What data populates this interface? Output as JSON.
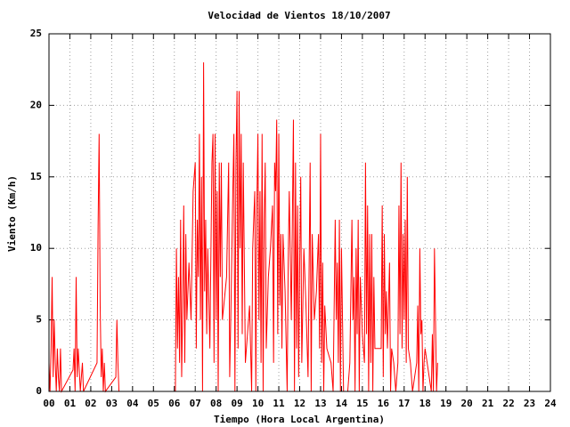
{
  "chart_data": {
    "type": "line",
    "title": "Velocidad de Vientos 18/10/2007",
    "xlabel": "Tiempo (Hora Local Argentina)",
    "ylabel": "Viento (Km/h)",
    "color": "#ff0000",
    "grid": true,
    "xlim": [
      0,
      24
    ],
    "ylim": [
      0,
      25
    ],
    "xticks": [
      {
        "value": 0,
        "label": "00"
      },
      {
        "value": 1,
        "label": "01"
      },
      {
        "value": 2,
        "label": "02"
      },
      {
        "value": 3,
        "label": "03"
      },
      {
        "value": 4,
        "label": "04"
      },
      {
        "value": 5,
        "label": "05"
      },
      {
        "value": 6,
        "label": "06"
      },
      {
        "value": 7,
        "label": "07"
      },
      {
        "value": 8,
        "label": "08"
      },
      {
        "value": 9,
        "label": "09"
      },
      10,
      11,
      12,
      13,
      14,
      15,
      16,
      17,
      18,
      19,
      20,
      21,
      22,
      23,
      24
    ],
    "yticks": [
      0,
      5,
      10,
      15,
      20,
      25
    ],
    "x": [
      0,
      0.05,
      0.1,
      0.15,
      0.2,
      0.25,
      0.3,
      0.35,
      0.4,
      0.45,
      0.5,
      0.55,
      0.6,
      1.15,
      1.2,
      1.25,
      1.3,
      1.35,
      1.4,
      1.5,
      1.6,
      1.65,
      2.3,
      2.35,
      2.4,
      2.45,
      2.5,
      2.55,
      2.6,
      2.65,
      2.7,
      3.2,
      3.25,
      3.3,
      3.35,
      6.05,
      6.1,
      6.15,
      6.2,
      6.25,
      6.3,
      6.35,
      6.4,
      6.45,
      6.5,
      6.55,
      6.6,
      6.7,
      6.8,
      6.9,
      7.0,
      7.05,
      7.1,
      7.15,
      7.2,
      7.25,
      7.3,
      7.35,
      7.4,
      7.45,
      7.5,
      7.55,
      7.6,
      7.7,
      7.8,
      7.85,
      7.9,
      7.95,
      8.0,
      8.05,
      8.1,
      8.15,
      8.2,
      8.25,
      8.3,
      8.5,
      8.6,
      8.65,
      8.7,
      8.8,
      8.85,
      8.9,
      8.95,
      9.0,
      9.05,
      9.1,
      9.15,
      9.2,
      9.25,
      9.3,
      9.4,
      9.6,
      9.7,
      9.75,
      9.8,
      9.85,
      9.9,
      9.95,
      10.0,
      10.05,
      10.1,
      10.15,
      10.2,
      10.25,
      10.3,
      10.35,
      10.4,
      10.5,
      10.6,
      10.7,
      10.75,
      10.8,
      10.85,
      10.9,
      10.95,
      11.0,
      11.05,
      11.1,
      11.15,
      11.2,
      11.3,
      11.4,
      11.45,
      11.5,
      11.6,
      11.7,
      11.75,
      11.8,
      11.85,
      11.9,
      11.95,
      12.0,
      12.05,
      12.1,
      12.2,
      12.3,
      12.4,
      12.5,
      12.55,
      12.6,
      12.7,
      12.8,
      12.9,
      12.95,
      13.0,
      13.05,
      13.1,
      13.15,
      13.2,
      13.3,
      13.5,
      13.6,
      13.7,
      13.75,
      13.8,
      13.85,
      13.9,
      13.95,
      14.0,
      14.05,
      14.1,
      14.3,
      14.4,
      14.5,
      14.55,
      14.6,
      14.65,
      14.7,
      14.75,
      14.8,
      14.85,
      14.9,
      15.0,
      15.1,
      15.15,
      15.2,
      15.25,
      15.3,
      15.35,
      15.4,
      15.45,
      15.5,
      15.55,
      15.6,
      15.7,
      15.8,
      15.9,
      15.95,
      16.0,
      16.05,
      16.1,
      16.15,
      16.2,
      16.3,
      16.35,
      16.4,
      16.5,
      16.6,
      16.7,
      16.75,
      16.8,
      16.85,
      16.9,
      16.95,
      17.0,
      17.05,
      17.1,
      17.15,
      17.2,
      17.3,
      17.4,
      17.6,
      17.65,
      17.7,
      17.75,
      17.8,
      17.85,
      17.9,
      17.95,
      18.0,
      18.1,
      18.2,
      18.3,
      18.35,
      18.4,
      18.45,
      18.5,
      18.55,
      18.6
    ],
    "values": [
      2,
      0,
      3,
      8,
      1,
      5,
      2,
      0,
      3,
      1,
      0,
      3,
      0,
      1.5,
      3,
      0,
      8,
      1,
      3,
      0,
      2,
      0,
      2,
      11.5,
      18,
      6,
      1,
      3,
      0,
      2,
      0,
      1,
      5,
      2,
      0,
      0,
      10,
      3,
      8,
      2,
      12,
      1,
      6,
      13,
      2,
      11,
      5,
      9,
      5,
      14,
      16,
      3,
      12,
      8,
      18,
      5,
      15,
      0,
      23,
      7,
      12,
      4,
      10,
      3,
      16,
      18,
      2,
      18,
      5,
      14,
      0,
      16,
      8,
      16,
      5,
      8,
      16,
      1,
      5,
      14,
      18,
      0,
      16,
      21,
      3,
      21,
      10,
      18,
      4,
      16,
      2,
      6,
      0,
      10,
      12,
      14,
      0,
      13,
      18,
      5,
      14,
      2,
      18,
      0,
      12,
      16,
      3,
      8,
      10,
      13,
      2,
      16,
      14,
      19,
      4,
      18,
      6,
      11,
      3,
      11,
      7,
      0,
      9,
      14,
      5,
      19,
      0,
      16,
      3,
      13,
      1,
      9,
      15,
      2,
      10,
      6,
      1,
      16,
      0,
      11,
      5,
      7,
      11,
      3,
      18,
      2,
      9,
      0,
      6,
      3,
      2,
      0,
      12,
      5,
      9,
      2,
      12,
      0,
      10,
      5,
      0,
      0,
      2,
      12,
      5,
      8,
      0,
      10,
      4,
      12,
      0,
      8,
      4,
      2,
      16,
      4,
      13,
      0,
      11,
      2,
      11,
      0,
      8,
      3,
      3,
      3,
      3,
      13,
      1,
      11,
      4,
      7,
      3,
      9,
      0,
      3,
      2,
      0,
      2,
      13,
      4,
      16,
      3,
      11,
      5,
      12,
      2,
      15,
      3,
      2,
      0,
      2,
      6,
      0,
      10,
      4,
      5,
      0,
      2,
      3,
      2,
      1,
      0,
      4,
      0,
      10,
      5,
      0,
      2
    ]
  }
}
